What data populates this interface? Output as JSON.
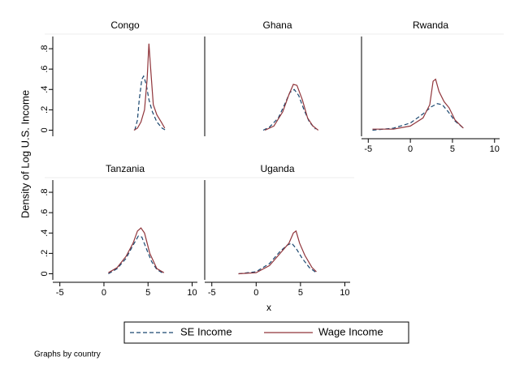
{
  "figure": {
    "ylabel": "Density of Log U.S. Income",
    "xlabel": "x",
    "note": "Graphs by country"
  },
  "chart_data": [
    {
      "type": "line",
      "title": "Congo",
      "xlim": [
        -5.8,
        10.6
      ],
      "ylim": [
        -0.06,
        0.92
      ],
      "yticks": [
        0,
        {
          "value": 0.2,
          "label": ".2"
        },
        {
          "value": 0.4,
          "label": ".4"
        },
        {
          "value": 0.6,
          "label": ".6"
        },
        {
          "value": 0.8,
          "label": ".8"
        }
      ],
      "series": [
        {
          "name": "SE Income",
          "color": "#1a476f",
          "dash": true,
          "x": [
            3.5,
            3.8,
            4.0,
            4.3,
            4.5,
            4.8,
            5.1,
            5.5,
            6.0,
            6.6,
            7.0
          ],
          "values": [
            0,
            0.1,
            0.3,
            0.5,
            0.53,
            0.45,
            0.3,
            0.18,
            0.08,
            0.02,
            0
          ]
        },
        {
          "name": "Wage Income",
          "color": "#90353b",
          "dash": false,
          "x": [
            3.4,
            3.8,
            4.2,
            4.6,
            4.9,
            5.1,
            5.3,
            5.6,
            6.0,
            6.5,
            6.9
          ],
          "values": [
            0,
            0.02,
            0.08,
            0.2,
            0.5,
            0.85,
            0.6,
            0.25,
            0.15,
            0.08,
            0.02
          ]
        }
      ]
    },
    {
      "type": "line",
      "title": "Ghana",
      "xlim": [
        -5.8,
        10.6
      ],
      "ylim": [
        -0.06,
        0.92
      ],
      "series": [
        {
          "name": "SE Income",
          "color": "#1a476f",
          "dash": true,
          "x": [
            0.8,
            1.5,
            2.5,
            3.2,
            3.8,
            4.3,
            4.8,
            5.4,
            6.0,
            6.7
          ],
          "values": [
            0,
            0.03,
            0.12,
            0.25,
            0.37,
            0.4,
            0.34,
            0.2,
            0.08,
            0.01
          ]
        },
        {
          "name": "Wage Income",
          "color": "#90353b",
          "dash": false,
          "x": [
            1.0,
            2.0,
            3.0,
            3.7,
            4.2,
            4.6,
            5.2,
            5.8,
            6.4,
            7.0
          ],
          "values": [
            0,
            0.04,
            0.18,
            0.35,
            0.45,
            0.44,
            0.3,
            0.12,
            0.04,
            0
          ]
        }
      ]
    },
    {
      "type": "line",
      "title": "Rwanda",
      "xlim": [
        -5.8,
        10.6
      ],
      "ylim": [
        -0.06,
        0.92
      ],
      "xticks": [
        -5,
        0,
        5,
        10
      ],
      "series": [
        {
          "name": "SE Income",
          "color": "#1a476f",
          "dash": true,
          "x": [
            -4.5,
            -2,
            0,
            1.5,
            2.5,
            3.2,
            3.8,
            4.5,
            5.3,
            6.3
          ],
          "values": [
            0,
            0.02,
            0.07,
            0.16,
            0.23,
            0.26,
            0.25,
            0.18,
            0.09,
            0.02
          ]
        },
        {
          "name": "Wage Income",
          "color": "#90353b",
          "dash": false,
          "x": [
            -4.5,
            -2,
            0,
            1.5,
            2.3,
            2.7,
            3.0,
            3.4,
            4.0,
            4.6,
            5.3,
            6.3
          ],
          "values": [
            0.01,
            0.01,
            0.04,
            0.12,
            0.25,
            0.48,
            0.5,
            0.38,
            0.28,
            0.22,
            0.1,
            0.02
          ]
        }
      ]
    },
    {
      "type": "line",
      "title": "Tanzania",
      "xlim": [
        -5.8,
        10.6
      ],
      "ylim": [
        -0.06,
        0.92
      ],
      "xticks": [
        -5,
        0,
        5,
        10
      ],
      "yticks": [
        0,
        {
          "value": 0.2,
          "label": ".2"
        },
        {
          "value": 0.4,
          "label": ".4"
        },
        {
          "value": 0.6,
          "label": ".6"
        },
        {
          "value": 0.8,
          "label": ".8"
        }
      ],
      "series": [
        {
          "name": "SE Income",
          "color": "#1a476f",
          "dash": true,
          "x": [
            0.5,
            1.5,
            2.5,
            3.3,
            3.9,
            4.3,
            4.8,
            5.4,
            6.0,
            6.8
          ],
          "values": [
            0,
            0.05,
            0.15,
            0.28,
            0.37,
            0.36,
            0.25,
            0.12,
            0.04,
            0
          ]
        },
        {
          "name": "Wage Income",
          "color": "#90353b",
          "dash": false,
          "x": [
            0.5,
            1.5,
            2.5,
            3.3,
            3.8,
            4.2,
            4.6,
            5.2,
            6.0,
            6.8
          ],
          "values": [
            0.01,
            0.06,
            0.17,
            0.3,
            0.42,
            0.45,
            0.4,
            0.2,
            0.05,
            0.01
          ]
        }
      ]
    },
    {
      "type": "line",
      "title": "Uganda",
      "xlim": [
        -5.8,
        10.6
      ],
      "ylim": [
        -0.06,
        0.92
      ],
      "xticks": [
        -5,
        0,
        5,
        10
      ],
      "series": [
        {
          "name": "SE Income",
          "color": "#1a476f",
          "dash": true,
          "x": [
            -2,
            0,
            1.5,
            2.7,
            3.5,
            4.0,
            4.5,
            5.2,
            6.0,
            6.8
          ],
          "values": [
            0,
            0.02,
            0.1,
            0.22,
            0.28,
            0.3,
            0.25,
            0.15,
            0.06,
            0.01
          ]
        },
        {
          "name": "Wage Income",
          "color": "#90353b",
          "dash": false,
          "x": [
            -2,
            0,
            1.5,
            2.7,
            3.7,
            4.2,
            4.5,
            4.9,
            5.5,
            6.3,
            6.8
          ],
          "values": [
            0,
            0.01,
            0.08,
            0.2,
            0.3,
            0.4,
            0.42,
            0.3,
            0.18,
            0.06,
            0.02
          ]
        }
      ]
    }
  ]
}
